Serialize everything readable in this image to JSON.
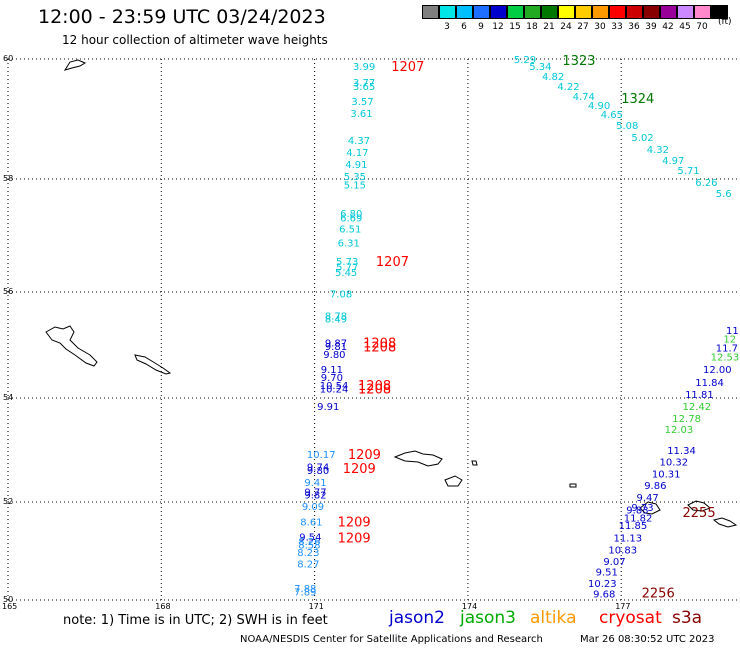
{
  "title": "12:00 - 23:59 UTC 03/24/2023",
  "subtitle": "12 hour collection of altimeter wave heights",
  "legend": {
    "unit": "(ft)",
    "swatches": [
      {
        "label": "",
        "color": "#7f7f7f"
      },
      {
        "label": "3",
        "color": "#00e5e5"
      },
      {
        "label": "6",
        "color": "#00bfff"
      },
      {
        "label": "9",
        "color": "#1e6fff"
      },
      {
        "label": "12",
        "color": "#0000cc"
      },
      {
        "label": "15",
        "color": "#00cc44"
      },
      {
        "label": "18",
        "color": "#22aa22"
      },
      {
        "label": "21",
        "color": "#007700"
      },
      {
        "label": "24",
        "color": "#ffff00"
      },
      {
        "label": "27",
        "color": "#ffcc00"
      },
      {
        "label": "30",
        "color": "#ff9900"
      },
      {
        "label": "33",
        "color": "#ff0000"
      },
      {
        "label": "36",
        "color": "#cc0000"
      },
      {
        "label": "39",
        "color": "#880000"
      },
      {
        "label": "42",
        "color": "#990099"
      },
      {
        "label": "45",
        "color": "#cc88ff"
      },
      {
        "label": "70",
        "color": "#ff88cc"
      },
      {
        "label": "",
        "color": "#000000"
      }
    ]
  },
  "axes": {
    "lat_labels": [
      "60",
      "58",
      "56",
      "54",
      "52",
      "50"
    ],
    "lon_labels": [
      "165",
      "168",
      "171",
      "174",
      "177"
    ]
  },
  "tracks": {
    "cyan": [
      {
        "v": "3.99",
        "lon": 171.75,
        "lat": 59.88
      },
      {
        "v": "3.77",
        "lon": 171.75,
        "lat": 59.62
      },
      {
        "v": "3.65",
        "lon": 171.75,
        "lat": 59.55
      },
      {
        "v": "3.57",
        "lon": 171.72,
        "lat": 59.3
      },
      {
        "v": "3.61",
        "lon": 171.7,
        "lat": 59.1
      },
      {
        "v": "4.37",
        "lon": 171.65,
        "lat": 58.65
      },
      {
        "v": "4.17",
        "lon": 171.62,
        "lat": 58.45
      },
      {
        "v": "4.91",
        "lon": 171.6,
        "lat": 58.25
      },
      {
        "v": "5.35",
        "lon": 171.57,
        "lat": 58.05
      },
      {
        "v": "5.15",
        "lon": 171.57,
        "lat": 57.9
      },
      {
        "v": "6.80",
        "lon": 171.5,
        "lat": 57.4
      },
      {
        "v": "6.69",
        "lon": 171.5,
        "lat": 57.32
      },
      {
        "v": "6.51",
        "lon": 171.48,
        "lat": 57.12
      },
      {
        "v": "6.31",
        "lon": 171.45,
        "lat": 56.88
      },
      {
        "v": "5.73",
        "lon": 171.42,
        "lat": 56.55
      },
      {
        "v": "5.77",
        "lon": 171.42,
        "lat": 56.45
      },
      {
        "v": "5.45",
        "lon": 171.4,
        "lat": 56.35
      },
      {
        "v": "7.08",
        "lon": 171.3,
        "lat": 55.97
      },
      {
        "v": "8.78",
        "lon": 171.2,
        "lat": 55.56
      },
      {
        "v": "8.49",
        "lon": 171.2,
        "lat": 55.5
      },
      {
        "v": "5.29",
        "lon": 174.9,
        "lat": 60.0
      },
      {
        "v": "5.34",
        "lon": 175.2,
        "lat": 59.88
      },
      {
        "v": "4.82",
        "lon": 175.45,
        "lat": 59.72
      },
      {
        "v": "4.22",
        "lon": 175.75,
        "lat": 59.55
      },
      {
        "v": "4.74",
        "lon": 176.05,
        "lat": 59.38
      },
      {
        "v": "4.90",
        "lon": 176.35,
        "lat": 59.23
      },
      {
        "v": "4.65",
        "lon": 176.6,
        "lat": 59.08
      },
      {
        "v": "5.08",
        "lon": 176.9,
        "lat": 58.9
      },
      {
        "v": "5.02",
        "lon": 177.2,
        "lat": 58.7
      },
      {
        "v": "4.32",
        "lon": 177.5,
        "lat": 58.5
      },
      {
        "v": "4.97",
        "lon": 177.8,
        "lat": 58.32
      },
      {
        "v": "5.71",
        "lon": 178.1,
        "lat": 58.15
      },
      {
        "v": "6.26",
        "lon": 178.45,
        "lat": 57.95
      },
      {
        "v": "5.6",
        "lon": 178.85,
        "lat": 57.75
      }
    ],
    "lightblue": [
      {
        "v": "10.17",
        "lon": 170.85,
        "lat": 52.92
      },
      {
        "v": "9.41",
        "lon": 170.8,
        "lat": 52.38
      },
      {
        "v": "9.09",
        "lon": 170.75,
        "lat": 51.92
      },
      {
        "v": "8.61",
        "lon": 170.72,
        "lat": 51.6
      },
      {
        "v": "8.26",
        "lon": 170.68,
        "lat": 51.2
      },
      {
        "v": "8.58",
        "lon": 170.68,
        "lat": 51.13
      },
      {
        "v": "8.23",
        "lon": 170.66,
        "lat": 50.98
      },
      {
        "v": "8.27",
        "lon": 170.66,
        "lat": 50.75
      },
      {
        "v": "7.88",
        "lon": 170.6,
        "lat": 50.24
      },
      {
        "v": "7.89",
        "lon": 170.6,
        "lat": 50.17
      }
    ],
    "blue": [
      {
        "v": "9.87",
        "lon": 171.2,
        "lat": 55.05
      },
      {
        "v": "9.81",
        "lon": 171.2,
        "lat": 54.98
      },
      {
        "v": "9.80",
        "lon": 171.17,
        "lat": 54.83
      },
      {
        "v": "9.11",
        "lon": 171.12,
        "lat": 54.55
      },
      {
        "v": "9.70",
        "lon": 171.12,
        "lat": 54.4
      },
      {
        "v": "10.54",
        "lon": 171.1,
        "lat": 54.25
      },
      {
        "v": "10.24",
        "lon": 171.1,
        "lat": 54.18
      },
      {
        "v": "9.91",
        "lon": 171.05,
        "lat": 53.85
      },
      {
        "v": "9.74",
        "lon": 170.85,
        "lat": 52.68
      },
      {
        "v": "9.80",
        "lon": 170.85,
        "lat": 52.62
      },
      {
        "v": "9.77",
        "lon": 170.8,
        "lat": 52.2
      },
      {
        "v": "9.82",
        "lon": 170.8,
        "lat": 52.14
      },
      {
        "v": "9.54",
        "lon": 170.7,
        "lat": 51.3
      },
      {
        "v": "11",
        "lon": 179.05,
        "lat": 55.28
      },
      {
        "v": "11.7",
        "lon": 178.85,
        "lat": 54.95
      },
      {
        "v": "12.00",
        "lon": 178.6,
        "lat": 54.55
      },
      {
        "v": "11.84",
        "lon": 178.45,
        "lat": 54.3
      },
      {
        "v": "11.81",
        "lon": 178.25,
        "lat": 54.08
      },
      {
        "v": "11.34",
        "lon": 177.9,
        "lat": 53.0
      },
      {
        "v": "10.32",
        "lon": 177.75,
        "lat": 52.78
      },
      {
        "v": "10.31",
        "lon": 177.6,
        "lat": 52.55
      },
      {
        "v": "9.86",
        "lon": 177.45,
        "lat": 52.33
      },
      {
        "v": "9.47",
        "lon": 177.3,
        "lat": 52.1
      },
      {
        "v": "9.73",
        "lon": 177.2,
        "lat": 51.9
      },
      {
        "v": "9.83",
        "lon": 177.1,
        "lat": 51.85
      },
      {
        "v": "11.82",
        "lon": 177.05,
        "lat": 51.68
      },
      {
        "v": "11.85",
        "lon": 176.95,
        "lat": 51.53
      },
      {
        "v": "11.13",
        "lon": 176.85,
        "lat": 51.28
      },
      {
        "v": "10.83",
        "lon": 176.75,
        "lat": 51.03
      },
      {
        "v": "9.07",
        "lon": 176.65,
        "lat": 50.8
      },
      {
        "v": "9.51",
        "lon": 176.5,
        "lat": 50.58
      },
      {
        "v": "10.23",
        "lon": 176.35,
        "lat": 50.35
      },
      {
        "v": "9.68",
        "lon": 176.45,
        "lat": 50.13
      }
    ],
    "green": [
      {
        "v": "12",
        "lon": 179.0,
        "lat": 55.12
      },
      {
        "v": "12.53",
        "lon": 178.75,
        "lat": 54.78
      },
      {
        "v": "12.42",
        "lon": 178.2,
        "lat": 53.85
      },
      {
        "v": "12.78",
        "lon": 178.0,
        "lat": 53.62
      },
      {
        "v": "12.03",
        "lon": 177.85,
        "lat": 53.4
      }
    ]
  },
  "time_labels": [
    {
      "t": "1207",
      "color": "#ff0000",
      "lon": 172.5,
      "lat": 59.88
    },
    {
      "t": "1207",
      "color": "#ff0000",
      "lon": 172.2,
      "lat": 56.55
    },
    {
      "t": "1208",
      "color": "#ff0000",
      "lon": 171.95,
      "lat": 55.05
    },
    {
      "t": "1208",
      "color": "#ff0000",
      "lon": 171.95,
      "lat": 54.97
    },
    {
      "t": "1208",
      "color": "#ff0000",
      "lon": 171.85,
      "lat": 54.25
    },
    {
      "t": "1208",
      "color": "#ff0000",
      "lon": 171.85,
      "lat": 54.18
    },
    {
      "t": "1209",
      "color": "#ff0000",
      "lon": 171.65,
      "lat": 52.92
    },
    {
      "t": "1209",
      "color": "#ff0000",
      "lon": 171.55,
      "lat": 52.65
    },
    {
      "t": "1209",
      "color": "#ff0000",
      "lon": 171.45,
      "lat": 51.6
    },
    {
      "t": "1209",
      "color": "#ff0000",
      "lon": 171.45,
      "lat": 51.28
    },
    {
      "t": "1323",
      "color": "#007700",
      "lon": 175.85,
      "lat": 59.98
    },
    {
      "t": "1324",
      "color": "#007700",
      "lon": 177.0,
      "lat": 59.35
    },
    {
      "t": "2255",
      "color": "#880000",
      "lon": 178.2,
      "lat": 51.8
    },
    {
      "t": "2256",
      "color": "#880000",
      "lon": 177.4,
      "lat": 50.15
    }
  ],
  "note": "note: 1) Time is in UTC; 2) SWH is in feet",
  "satellites": [
    {
      "name": "jason2",
      "color": "#0000cc"
    },
    {
      "name": "jason3",
      "color": "#00aa00"
    },
    {
      "name": "altika",
      "color": "#ff9900"
    },
    {
      "name": "cryosat",
      "color": "#ff0000"
    },
    {
      "name": "s3a",
      "color": "#880000"
    }
  ],
  "credit": "NOAA/NESDIS Center for Satellite Applications and Research",
  "stamp": "Mar 26 08:30:52 UTC 2023"
}
